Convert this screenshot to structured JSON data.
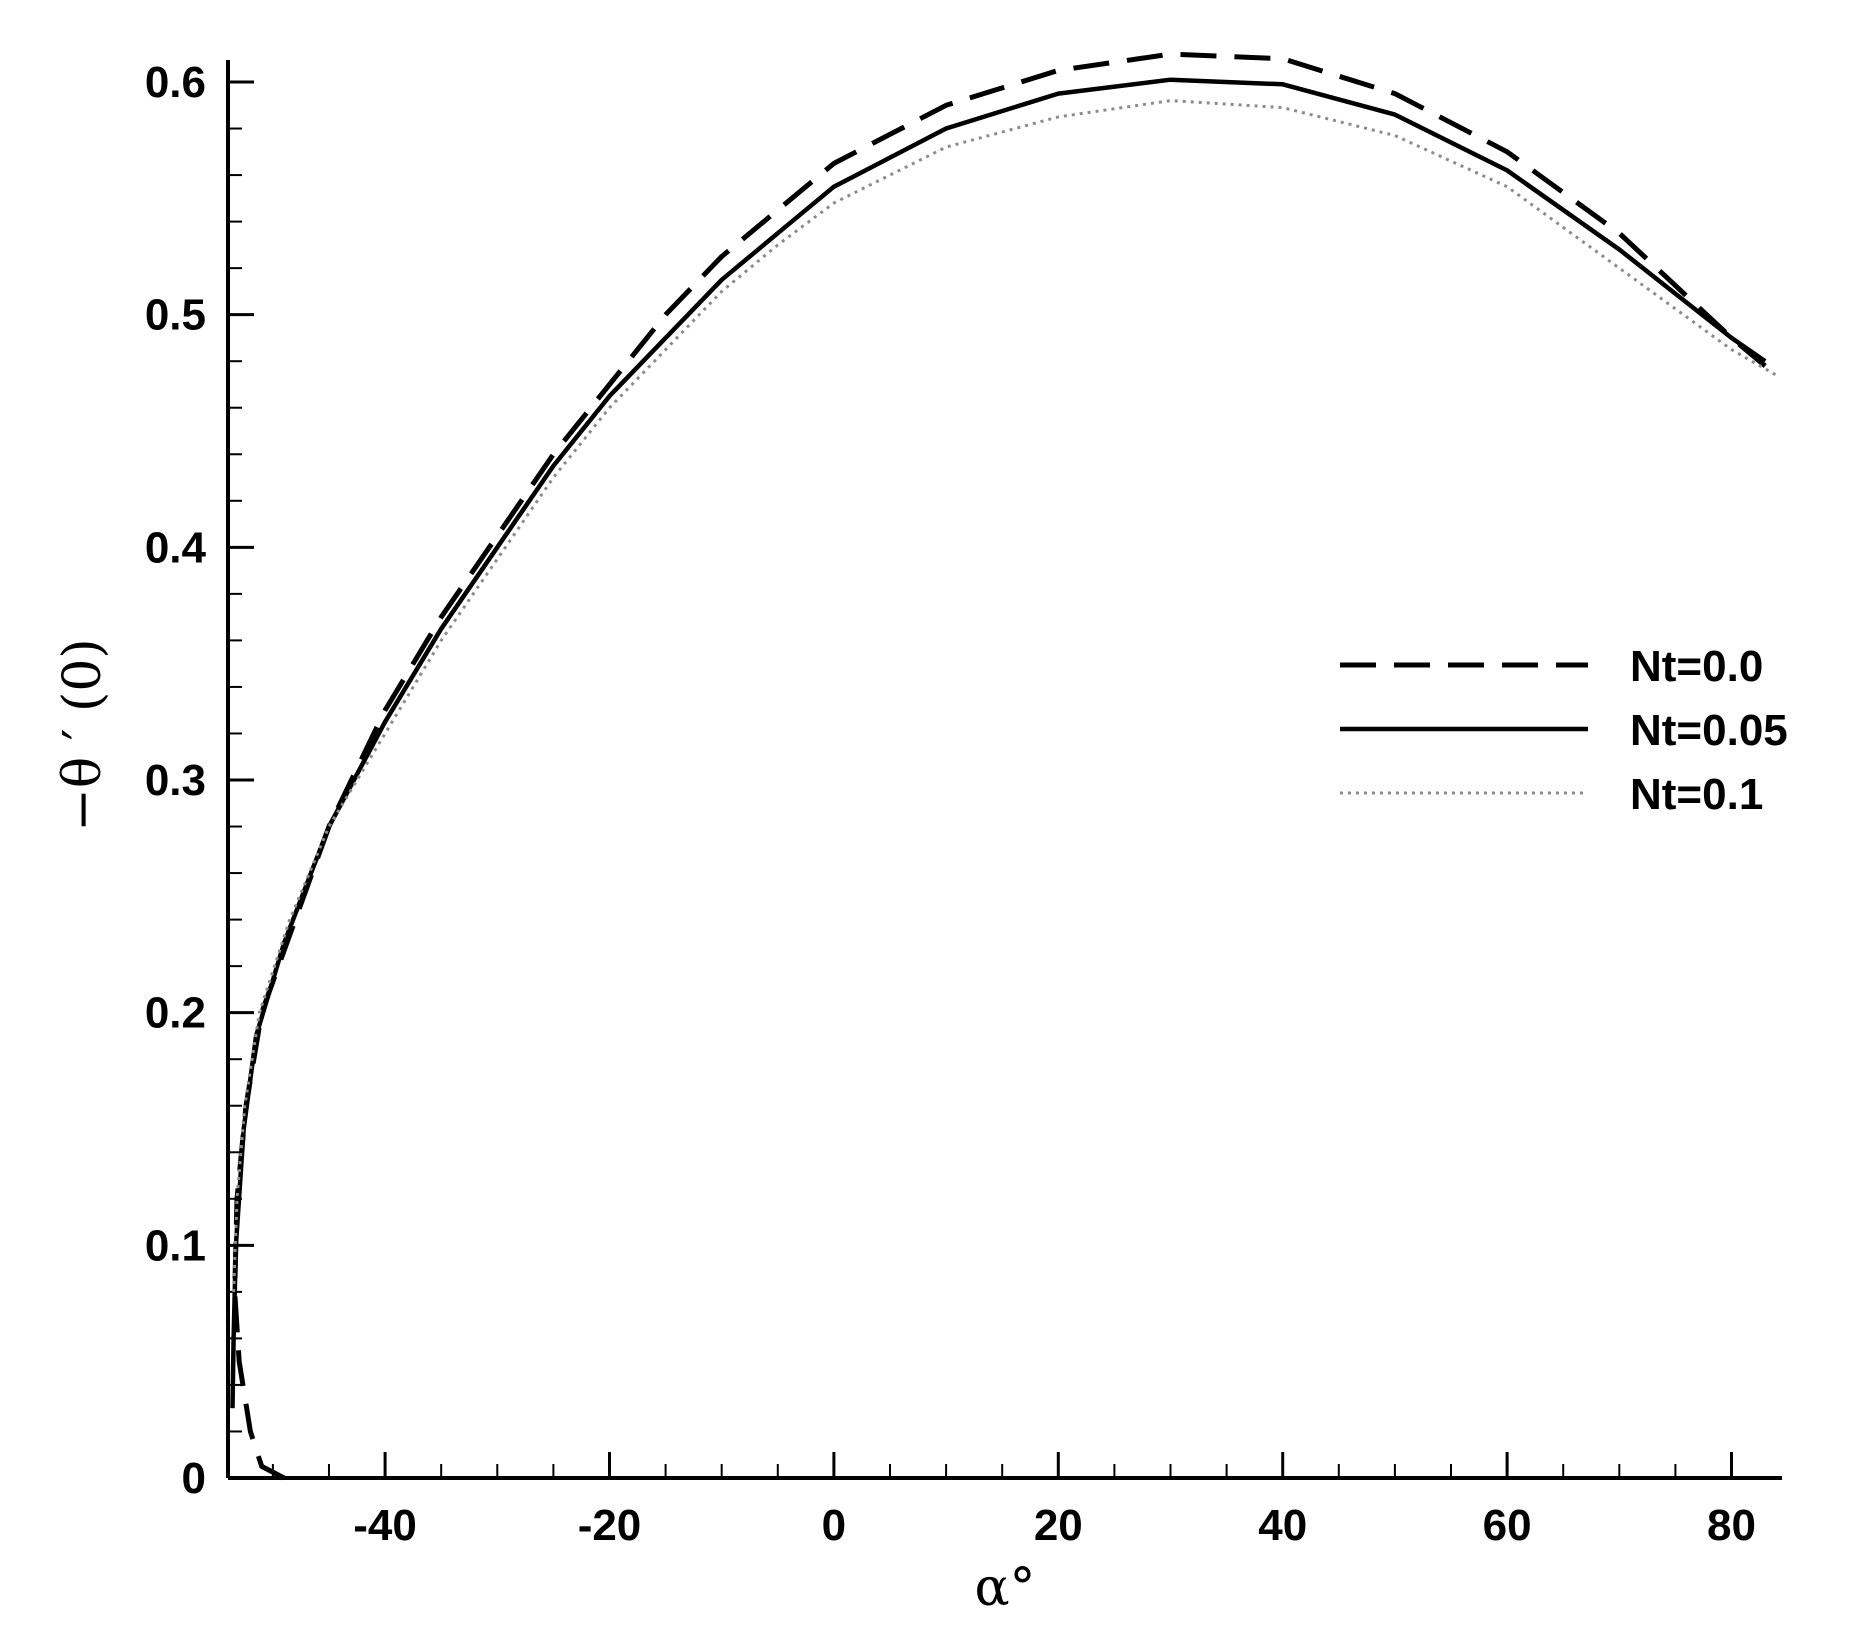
{
  "chart_data": {
    "type": "line",
    "xlabel": "α°",
    "ylabel": "−θ ′ (0)",
    "xlim": [
      -54,
      84.5
    ],
    "ylim": [
      0,
      0.6
    ],
    "x_major_ticks": [
      -40,
      -20,
      0,
      20,
      40,
      60,
      80
    ],
    "x_tick_labels": [
      "-40",
      "-20",
      "0",
      "20",
      "40",
      "60",
      "80"
    ],
    "y_major_ticks": [
      0,
      0.1,
      0.2,
      0.3,
      0.4,
      0.5,
      0.6
    ],
    "y_tick_labels": [
      "0",
      "0.1",
      "0.2",
      "0.3",
      "0.4",
      "0.5",
      "0.6"
    ],
    "grid": false,
    "legend_position": "right",
    "series": [
      {
        "name": "Nt=0.0",
        "style": "dashed",
        "color": "#000000",
        "points": [
          [
            -49,
            0.0
          ],
          [
            -51,
            0.005
          ],
          [
            -52,
            0.02
          ],
          [
            -53,
            0.05
          ],
          [
            -53.4,
            0.08
          ],
          [
            -53.2,
            0.12
          ],
          [
            -52.4,
            0.16
          ],
          [
            -51,
            0.2
          ],
          [
            -48,
            0.24
          ],
          [
            -45,
            0.28
          ],
          [
            -40,
            0.33
          ],
          [
            -35,
            0.37
          ],
          [
            -30,
            0.405
          ],
          [
            -25,
            0.44
          ],
          [
            -20,
            0.47
          ],
          [
            -15,
            0.5
          ],
          [
            -10,
            0.525
          ],
          [
            -5,
            0.545
          ],
          [
            0,
            0.565
          ],
          [
            10,
            0.59
          ],
          [
            20,
            0.605
          ],
          [
            30,
            0.612
          ],
          [
            40,
            0.61
          ],
          [
            50,
            0.595
          ],
          [
            60,
            0.57
          ],
          [
            70,
            0.535
          ],
          [
            80,
            0.49
          ],
          [
            83,
            0.478
          ]
        ]
      },
      {
        "name": "Nt=0.05",
        "style": "solid",
        "color": "#000000",
        "points": [
          [
            -53.6,
            0.03
          ],
          [
            -53.5,
            0.06
          ],
          [
            -53.3,
            0.1
          ],
          [
            -52.6,
            0.15
          ],
          [
            -51.5,
            0.19
          ],
          [
            -49,
            0.23
          ],
          [
            -45,
            0.28
          ],
          [
            -40,
            0.325
          ],
          [
            -35,
            0.365
          ],
          [
            -30,
            0.4
          ],
          [
            -25,
            0.435
          ],
          [
            -20,
            0.465
          ],
          [
            -15,
            0.49
          ],
          [
            -10,
            0.515
          ],
          [
            -5,
            0.535
          ],
          [
            0,
            0.555
          ],
          [
            10,
            0.58
          ],
          [
            20,
            0.595
          ],
          [
            30,
            0.601
          ],
          [
            40,
            0.599
          ],
          [
            50,
            0.586
          ],
          [
            60,
            0.562
          ],
          [
            70,
            0.528
          ],
          [
            80,
            0.49
          ],
          [
            83,
            0.48
          ]
        ]
      },
      {
        "name": "Nt=0.1",
        "style": "dotted",
        "color": "#8c8c8c",
        "points": [
          [
            -53.5,
            0.08
          ],
          [
            -53.2,
            0.12
          ],
          [
            -52.5,
            0.16
          ],
          [
            -51.2,
            0.2
          ],
          [
            -48.5,
            0.24
          ],
          [
            -45,
            0.28
          ],
          [
            -40,
            0.32
          ],
          [
            -35,
            0.36
          ],
          [
            -30,
            0.395
          ],
          [
            -25,
            0.43
          ],
          [
            -20,
            0.46
          ],
          [
            -15,
            0.485
          ],
          [
            -10,
            0.51
          ],
          [
            -5,
            0.53
          ],
          [
            0,
            0.548
          ],
          [
            10,
            0.572
          ],
          [
            20,
            0.585
          ],
          [
            30,
            0.592
          ],
          [
            40,
            0.589
          ],
          [
            50,
            0.577
          ],
          [
            60,
            0.555
          ],
          [
            70,
            0.52
          ],
          [
            80,
            0.485
          ],
          [
            84,
            0.474
          ]
        ]
      }
    ]
  }
}
